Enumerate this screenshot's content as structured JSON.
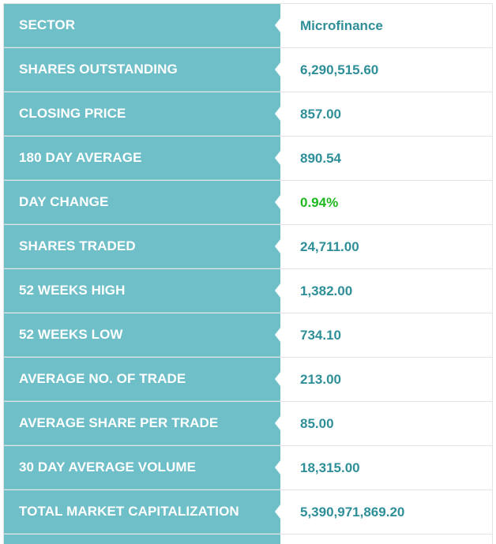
{
  "rows": [
    {
      "label": "SECTOR",
      "value": "Microfinance",
      "tone": "normal"
    },
    {
      "label": "SHARES OUTSTANDING",
      "value": "6,290,515.60",
      "tone": "normal"
    },
    {
      "label": "CLOSING PRICE",
      "value": "857.00",
      "tone": "normal"
    },
    {
      "label": "180 DAY AVERAGE",
      "value": "890.54",
      "tone": "normal"
    },
    {
      "label": "DAY CHANGE",
      "value": "0.94%",
      "tone": "positive"
    },
    {
      "label": "SHARES TRADED",
      "value": "24,711.00",
      "tone": "normal"
    },
    {
      "label": "52 WEEKS HIGH",
      "value": "1,382.00",
      "tone": "normal"
    },
    {
      "label": "52 WEEKS LOW",
      "value": "734.10",
      "tone": "normal"
    },
    {
      "label": "AVERAGE NO. OF TRADE",
      "value": "213.00",
      "tone": "normal"
    },
    {
      "label": "AVERAGE SHARE PER TRADE",
      "value": "85.00",
      "tone": "normal"
    },
    {
      "label": "30 DAY AVERAGE VOLUME",
      "value": "18,315.00",
      "tone": "normal"
    },
    {
      "label": "TOTAL MARKET CAPITALIZATION",
      "value": "5,390,971,869.20",
      "tone": "normal"
    }
  ],
  "colors": {
    "label_bg": "#6fbfc8",
    "label_text": "#ffffff",
    "value_text": "#2f8f98",
    "positive_text": "#1eb81e"
  }
}
